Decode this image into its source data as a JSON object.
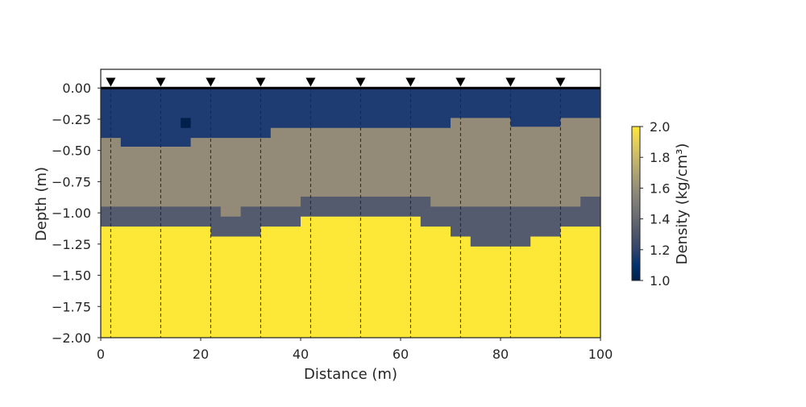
{
  "chart_data": {
    "type": "heatmap",
    "title": "",
    "xlabel": "Distance (m)",
    "ylabel": "Depth (m)",
    "xlim": [
      0,
      100
    ],
    "ylim": [
      -2.0,
      0.15
    ],
    "x_ticks": [
      0,
      20,
      40,
      60,
      80,
      100
    ],
    "x_tick_labels": [
      "0",
      "20",
      "40",
      "60",
      "80",
      "100"
    ],
    "y_ticks": [
      0,
      -0.25,
      -0.5,
      -0.75,
      -1.0,
      -1.25,
      -1.5,
      -1.75,
      -2.0
    ],
    "y_tick_labels": [
      "0.00",
      "−0.25",
      "−0.50",
      "−0.75",
      "−1.00",
      "−1.25",
      "−1.50",
      "−1.75",
      "−2.00"
    ],
    "grid": false,
    "colormap": "cividis",
    "colorbar": {
      "label": "Density (kg/cm³)",
      "vmin": 1.0,
      "vmax": 2.0,
      "ticks": [
        1.0,
        1.2,
        1.4,
        1.6,
        1.8,
        2.0
      ],
      "tick_labels": [
        "1.0",
        "1.2",
        "1.4",
        "1.6",
        "1.8",
        "2.0"
      ]
    },
    "layers": [
      {
        "value": 1.15,
        "color": "#1e3c72",
        "x_edges": [
          0,
          4,
          18,
          34,
          70,
          82,
          92,
          100
        ],
        "bottom_depth": [
          -0.4,
          -0.47,
          -0.4,
          -0.32,
          -0.24,
          -0.31,
          -0.24
        ]
      },
      {
        "value": 1.55,
        "color": "#938b77",
        "x_edges": [
          0,
          22,
          24,
          28,
          40,
          66,
          72,
          96,
          100
        ],
        "bottom_depth": [
          -0.95,
          -0.95,
          -1.03,
          -0.95,
          -0.87,
          -0.95,
          -0.95,
          -0.87
        ]
      },
      {
        "value": 1.35,
        "color": "#555b6e",
        "x_edges": [
          0,
          22,
          32,
          40,
          64,
          70,
          74,
          86,
          92,
          100
        ],
        "bottom_depth": [
          -1.11,
          -1.19,
          -1.11,
          -1.03,
          -1.11,
          -1.19,
          -1.27,
          -1.19,
          -1.11
        ]
      },
      {
        "value": 2.0,
        "color": "#fde737",
        "bottom_depth": -2.0
      }
    ],
    "anomaly": {
      "x": [
        16,
        18
      ],
      "depth": [
        -0.24,
        -0.32
      ],
      "value": 1.0,
      "color": "#00204c"
    },
    "sensors": {
      "x": [
        2,
        12,
        22,
        32,
        42,
        52,
        62,
        72,
        82,
        92
      ],
      "marker": "inverted-triangle",
      "line_style": "dashed"
    },
    "surface_depth": 0.0
  }
}
